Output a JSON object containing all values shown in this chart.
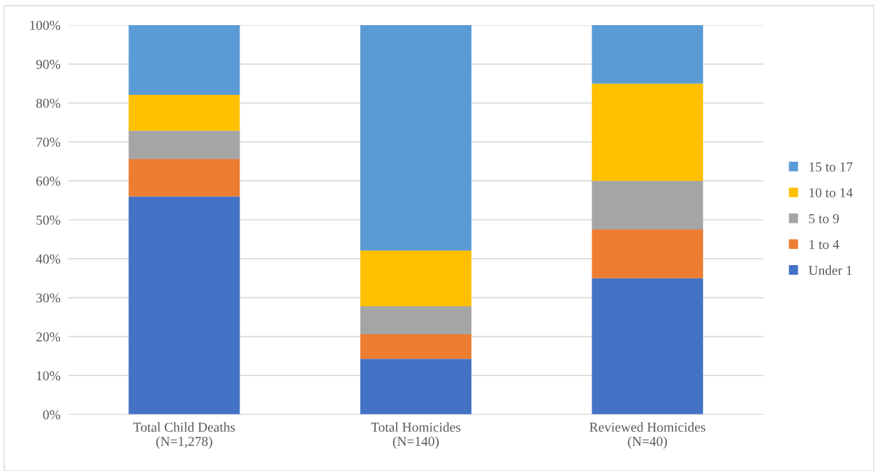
{
  "chart_data": {
    "type": "bar",
    "stacked": true,
    "categories": [
      "Total Child Deaths\n(N=1,278)",
      "Total Homicides\n(N=140)",
      "Reviewed Homicides\n(N=40)"
    ],
    "series": [
      {
        "name": "Under 1",
        "color": "#4472c4",
        "values": [
          56,
          14.3,
          35
        ]
      },
      {
        "name": "1 to 4",
        "color": "#ed7d31",
        "values": [
          9.6,
          6.3,
          12.5
        ]
      },
      {
        "name": "5 to 9",
        "color": "#a5a5a5",
        "values": [
          7.3,
          7.2,
          12.5
        ]
      },
      {
        "name": "10 to 14",
        "color": "#ffc000",
        "values": [
          9.2,
          14.3,
          25
        ]
      },
      {
        "name": "15 to 17",
        "color": "#5b9bd5",
        "values": [
          17.9,
          57.9,
          15
        ]
      }
    ],
    "ylim": [
      0,
      100
    ],
    "yticks": [
      {
        "value": 0,
        "label": "0%"
      },
      {
        "value": 10,
        "label": "10%"
      },
      {
        "value": 20,
        "label": "20%"
      },
      {
        "value": 30,
        "label": "30%"
      },
      {
        "value": 40,
        "label": "40%"
      },
      {
        "value": 50,
        "label": "50%"
      },
      {
        "value": 60,
        "label": "60%"
      },
      {
        "value": 70,
        "label": "70%"
      },
      {
        "value": 80,
        "label": "80%"
      },
      {
        "value": 90,
        "label": "90%"
      },
      {
        "value": 100,
        "label": "100%"
      }
    ],
    "grid": "y",
    "legend": "right"
  }
}
